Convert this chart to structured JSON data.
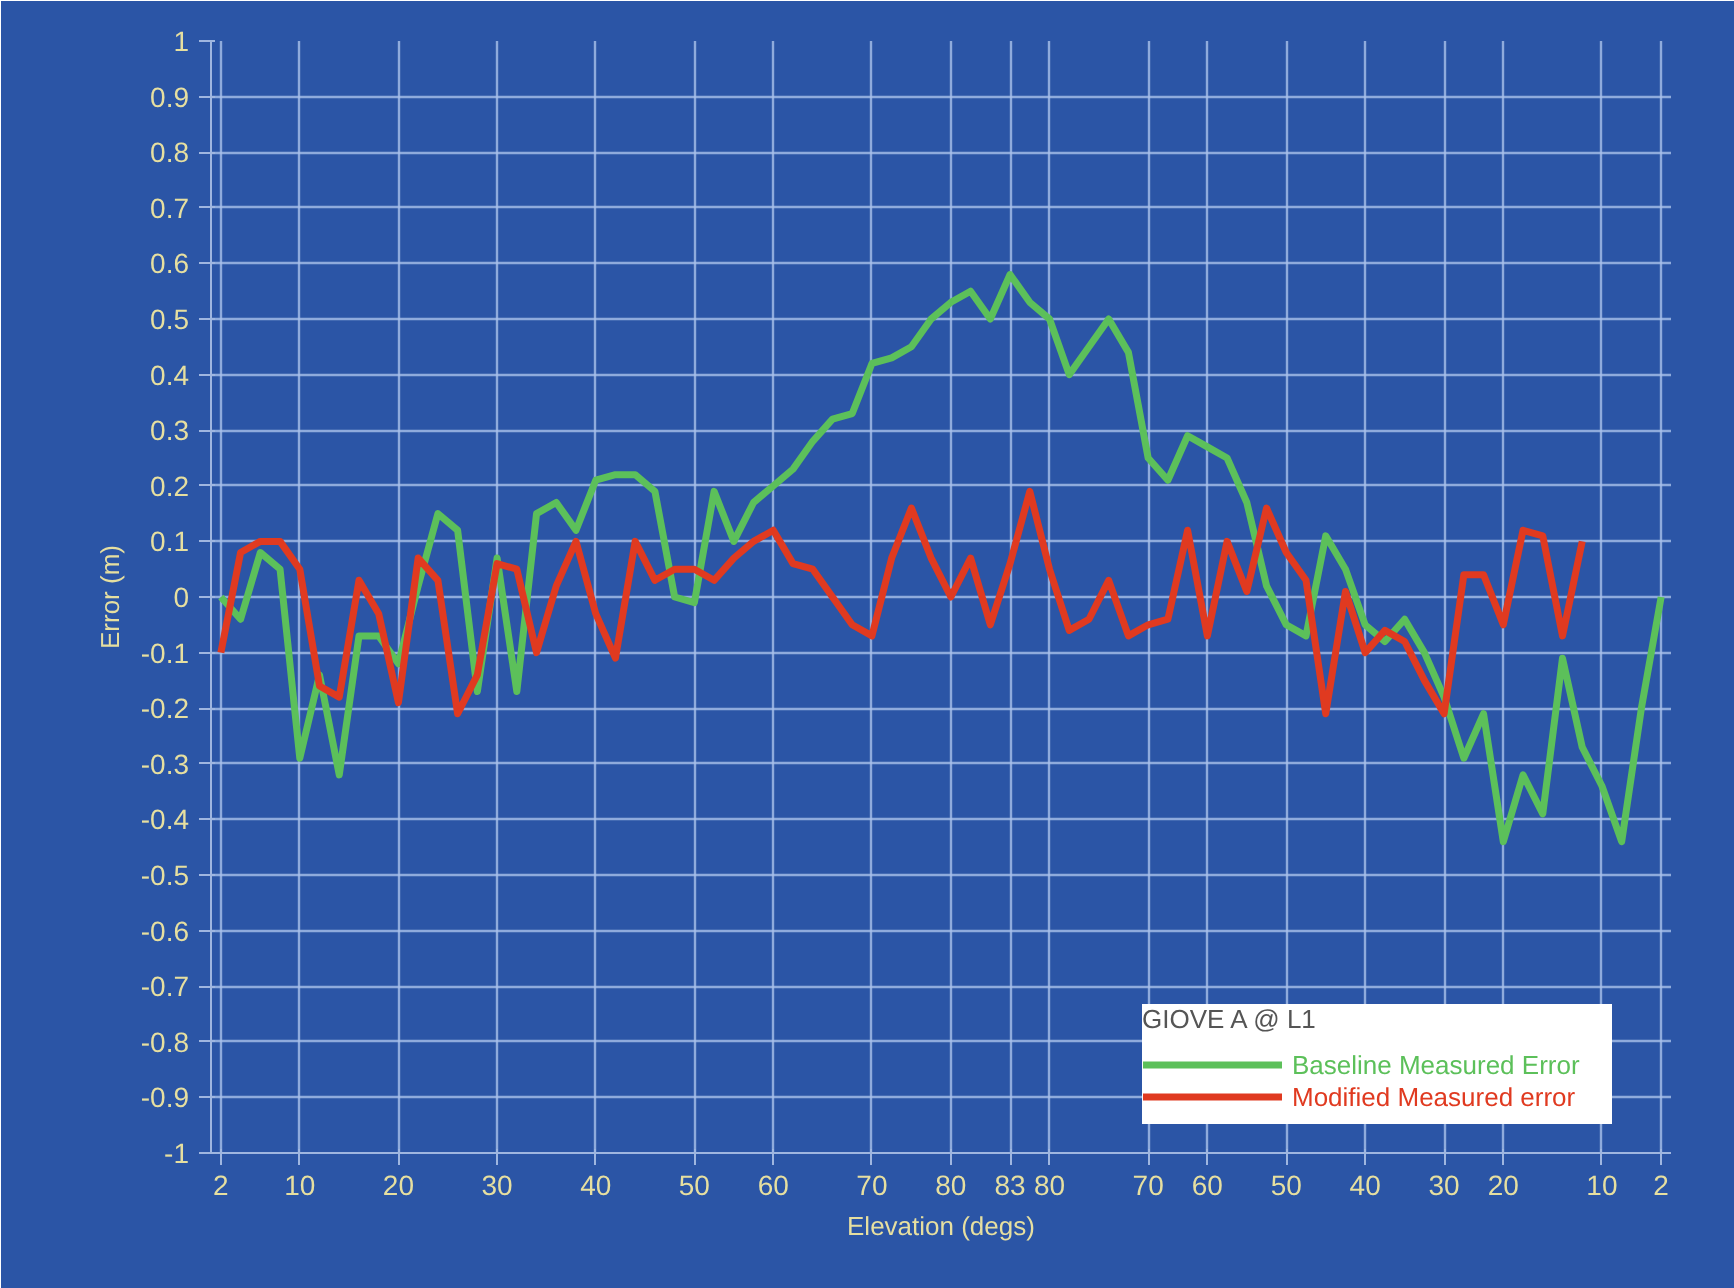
{
  "chart_data": {
    "type": "line",
    "xlabel": "Elevation (degs)",
    "ylabel": "Error (m)",
    "legend_title": "GIOVE A @ L1",
    "legend": "bottom right",
    "grid": true,
    "line_style": "solid",
    "categories": [
      "2",
      null,
      null,
      null,
      "10",
      null,
      null,
      null,
      null,
      "20",
      null,
      null,
      null,
      null,
      "30",
      null,
      null,
      null,
      null,
      "40",
      null,
      null,
      null,
      null,
      "50",
      null,
      null,
      null,
      "60",
      null,
      null,
      null,
      null,
      "70",
      null,
      null,
      null,
      "80",
      null,
      null,
      "83",
      null,
      "80",
      null,
      null,
      null,
      null,
      "70",
      null,
      null,
      "60",
      null,
      null,
      null,
      "50",
      null,
      null,
      null,
      "40",
      null,
      null,
      null,
      "30",
      null,
      null,
      "20",
      null,
      null,
      null,
      null,
      "10",
      null,
      null,
      "2"
    ],
    "ylim": [
      -1,
      1
    ],
    "yticks": [
      -1,
      -0.9,
      -0.8,
      -0.7,
      -0.6,
      -0.5,
      -0.4,
      -0.3,
      -0.2,
      -0.1,
      0,
      0.1,
      0.2,
      0.3,
      0.4,
      0.5,
      0.6,
      0.7,
      0.8,
      0.9,
      1
    ],
    "series": [
      {
        "name": "Baseline Measured Error",
        "color": "#5cc05a",
        "values": [
          0.0,
          -0.04,
          0.08,
          0.05,
          -0.29,
          -0.14,
          -0.32,
          -0.07,
          -0.07,
          -0.12,
          0.02,
          0.15,
          0.12,
          -0.17,
          0.07,
          -0.17,
          0.15,
          0.17,
          0.12,
          0.21,
          0.22,
          0.22,
          0.19,
          0.0,
          -0.01,
          0.19,
          0.1,
          0.17,
          0.2,
          0.23,
          0.28,
          0.32,
          0.33,
          0.42,
          0.43,
          0.45,
          0.5,
          0.53,
          0.55,
          0.5,
          0.58,
          0.53,
          0.5,
          0.4,
          0.45,
          0.5,
          0.44,
          0.25,
          0.21,
          0.29,
          0.27,
          0.25,
          0.17,
          0.02,
          -0.05,
          -0.07,
          0.11,
          0.05,
          -0.05,
          -0.08,
          -0.04,
          -0.1,
          -0.18,
          -0.29,
          -0.21,
          -0.44,
          -0.32,
          -0.39,
          -0.11,
          -0.27,
          -0.34,
          -0.44,
          -0.2,
          0.0
        ]
      },
      {
        "name": "Modified Measured error",
        "color": "#e03a20",
        "values": [
          -0.1,
          0.08,
          0.1,
          0.1,
          0.05,
          -0.16,
          -0.18,
          0.03,
          -0.03,
          -0.19,
          0.07,
          0.03,
          -0.21,
          -0.14,
          0.06,
          0.05,
          -0.1,
          0.02,
          0.1,
          -0.03,
          -0.11,
          0.1,
          0.03,
          0.05,
          0.05,
          0.03,
          0.07,
          0.1,
          0.12,
          0.06,
          0.05,
          0.0,
          -0.05,
          -0.07,
          0.07,
          0.16,
          0.07,
          0.0,
          0.07,
          -0.05,
          0.06,
          0.19,
          0.05,
          -0.06,
          -0.04,
          0.03,
          -0.07,
          -0.05,
          -0.04,
          0.12,
          -0.07,
          0.1,
          0.01,
          0.16,
          0.08,
          0.03,
          -0.21,
          0.01,
          -0.1,
          -0.06,
          -0.08,
          -0.15,
          -0.21,
          0.04,
          0.04,
          -0.05,
          0.12,
          0.11,
          -0.07,
          0.1,
          null,
          null,
          null,
          null
        ]
      }
    ]
  }
}
